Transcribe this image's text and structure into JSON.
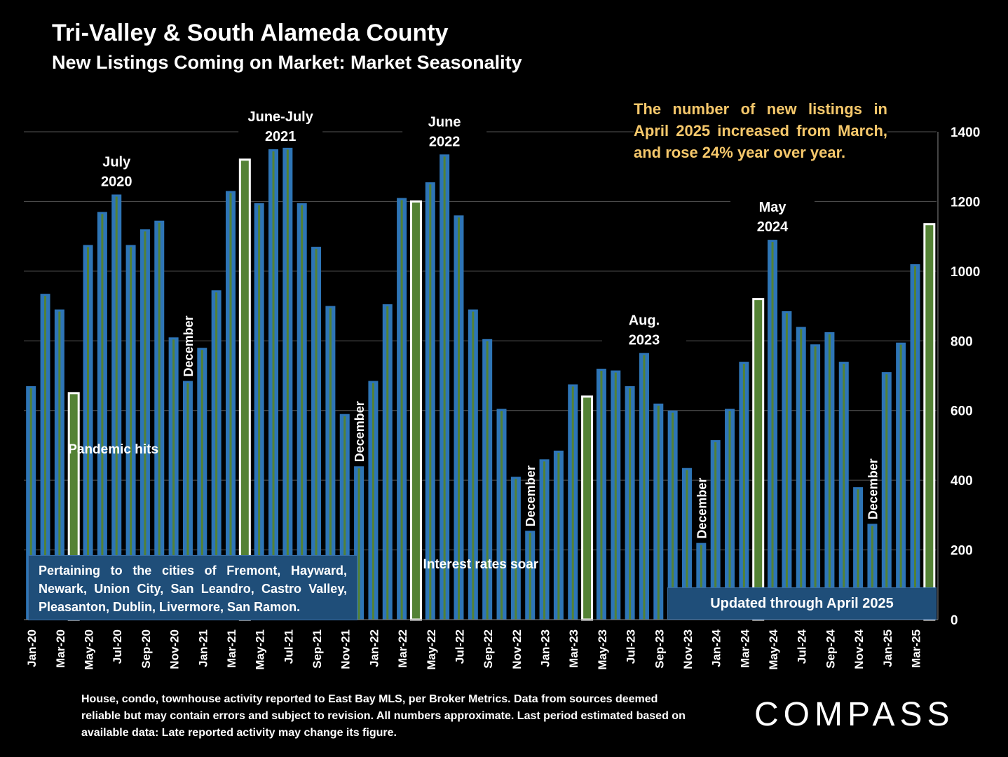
{
  "header": {
    "title": "Tri-Valley & South Alameda County",
    "subtitle": "New Listings Coming on Market: Market Seasonality"
  },
  "callout": "The number of new listings in April 2025 increased from March, and rose 24% year over year.",
  "info_box": "Pertaining to the cities of Fremont, Hayward, Newark, Union City, San Leandro, Castro Valley, Pleasanton, Dublin, Livermore, San Ramon.",
  "updated_box": "Updated through April 2025",
  "footnote": "House, condo, townhouse activity reported to East Bay MLS, per Broker Metrics. Data from sources deemed reliable but may contain errors and subject to revision. All numbers approximate. Last period estimated based on available data: Late reported activity may change its figure.",
  "logo": "COMPASS",
  "colors": {
    "bar_fill": "#2e75b6",
    "bar_inner": "#548235",
    "highlight_fill": "#548235",
    "highlight_border": "#ffffff",
    "callout_text": "#f6c86b",
    "box_fill": "#1f4e79"
  },
  "chart_data": {
    "type": "bar",
    "categories": [
      "Jan-20",
      "Feb-20",
      "Mar-20",
      "Apr-20",
      "May-20",
      "Jun-20",
      "Jul-20",
      "Aug-20",
      "Sep-20",
      "Oct-20",
      "Nov-20",
      "Dec-20",
      "Jan-21",
      "Feb-21",
      "Mar-21",
      "Apr-21",
      "May-21",
      "Jun-21",
      "Jul-21",
      "Aug-21",
      "Sep-21",
      "Oct-21",
      "Nov-21",
      "Dec-21",
      "Jan-22",
      "Feb-22",
      "Mar-22",
      "Apr-22",
      "May-22",
      "Jun-22",
      "Jul-22",
      "Aug-22",
      "Sep-22",
      "Oct-22",
      "Nov-22",
      "Dec-22",
      "Jan-23",
      "Feb-23",
      "Mar-23",
      "Apr-23",
      "May-23",
      "Jun-23",
      "Jul-23",
      "Aug-23",
      "Sep-23",
      "Oct-23",
      "Nov-23",
      "Dec-23",
      "Jan-24",
      "Feb-24",
      "Mar-24",
      "Apr-24",
      "May-24",
      "Jun-24",
      "Jul-24",
      "Aug-24",
      "Sep-24",
      "Oct-24",
      "Nov-24",
      "Dec-24",
      "Jan-25",
      "Feb-25",
      "Mar-25",
      "Apr-25"
    ],
    "tick_labels": [
      "Jan-20",
      "Mar-20",
      "May-20",
      "Jul-20",
      "Sep-20",
      "Nov-20",
      "Jan-21",
      "Mar-21",
      "May-21",
      "Jul-21",
      "Sep-21",
      "Nov-21",
      "Jan-22",
      "Mar-22",
      "May-22",
      "Jul-22",
      "Sep-22",
      "Nov-22",
      "Jan-23",
      "Mar-23",
      "May-23",
      "Jul-23",
      "Sep-23",
      "Nov-23",
      "Jan-24",
      "Mar-24",
      "May-24",
      "Jul-24",
      "Sep-24",
      "Nov-24",
      "Jan-25",
      "Mar-25"
    ],
    "values": [
      670,
      935,
      890,
      650,
      1075,
      1170,
      1220,
      1075,
      1120,
      1145,
      810,
      685,
      780,
      945,
      1230,
      1320,
      1195,
      1350,
      1355,
      1195,
      1070,
      900,
      590,
      440,
      685,
      905,
      1210,
      1200,
      1255,
      1335,
      1160,
      890,
      805,
      605,
      410,
      255,
      460,
      485,
      675,
      640,
      720,
      715,
      670,
      765,
      620,
      600,
      435,
      220,
      515,
      605,
      740,
      920,
      1090,
      885,
      840,
      790,
      825,
      740,
      380,
      275,
      710,
      795,
      1020,
      1135
    ],
    "highlighted": [
      "Apr-20",
      "Apr-21",
      "Apr-22",
      "Apr-23",
      "Apr-24",
      "Apr-25"
    ],
    "ylim": [
      0,
      1400
    ],
    "yticks": [
      0,
      200,
      400,
      600,
      800,
      1000,
      1200,
      1400
    ],
    "y_axis_side": "right",
    "grid": true,
    "annotations": {
      "peaks": [
        {
          "at": "Jul-20",
          "line1": "July",
          "line2": "2020"
        },
        {
          "at": "Jun-21",
          "line1": "June-July",
          "line2": "2021"
        },
        {
          "at": "Jun-22",
          "line1": "June",
          "line2": "2022"
        },
        {
          "at": "Aug-23",
          "line1": "Aug.",
          "line2": "2023"
        },
        {
          "at": "May-24",
          "line1": "May",
          "line2": "2024"
        }
      ],
      "december_label": "December",
      "december_months": [
        "Dec-20",
        "Dec-21",
        "Dec-22",
        "Dec-23",
        "Dec-24"
      ],
      "pandemic": "Pandemic hits",
      "rates": "Interest rates soar"
    }
  }
}
